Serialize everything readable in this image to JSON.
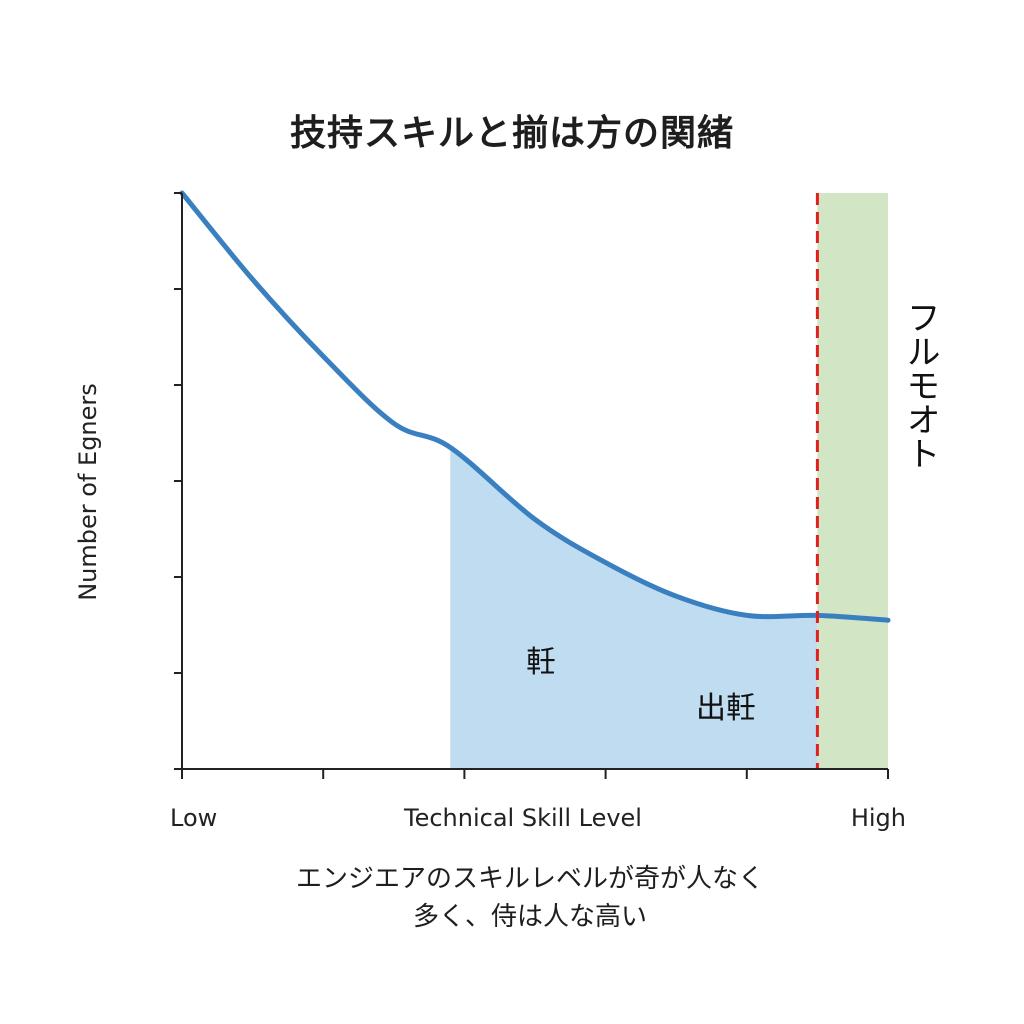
{
  "chart_data": {
    "type": "area",
    "title": "技持スキルと揃は方の関緒",
    "xlabel": "Technical Skill Level",
    "ylabel": "Number of Egners",
    "x_tick_labels": {
      "low": "Low",
      "high": "High"
    },
    "xlim": [
      0,
      1
    ],
    "ylim": [
      0,
      6
    ],
    "x_ticks": [
      0,
      0.2,
      0.4,
      0.6,
      0.8,
      1.0
    ],
    "y_ticks": [
      0,
      1,
      2,
      3,
      4,
      5,
      6
    ],
    "grid": false,
    "series": [
      {
        "color": "#3a80c0",
        "x": [
          0,
          0.1,
          0.2,
          0.3,
          0.38,
          0.5,
          0.6,
          0.7,
          0.8,
          0.9,
          1.0
        ],
        "y": [
          6.0,
          5.1,
          4.3,
          3.6,
          3.35,
          2.6,
          2.15,
          1.8,
          1.6,
          1.6,
          1.55
        ]
      }
    ],
    "regions": [
      {
        "type": "band",
        "x_start": 0.38,
        "x_end": 0.9,
        "fill": "under-curve",
        "color": "#c0dcf1",
        "labels": [
          "軠",
          "出軠"
        ]
      },
      {
        "type": "band",
        "x_start": 0.9,
        "x_end": 1.0,
        "fill": "full-height",
        "color": "#d2e6c6",
        "label": "フルモオト"
      }
    ],
    "threshold_line": {
      "x": 0.9,
      "color": "#e02020",
      "style": "dashed"
    }
  },
  "caption": {
    "line1": "エンジエアのスキルレベルが奇が人なく",
    "line2": "多く、侍は人な高い"
  }
}
